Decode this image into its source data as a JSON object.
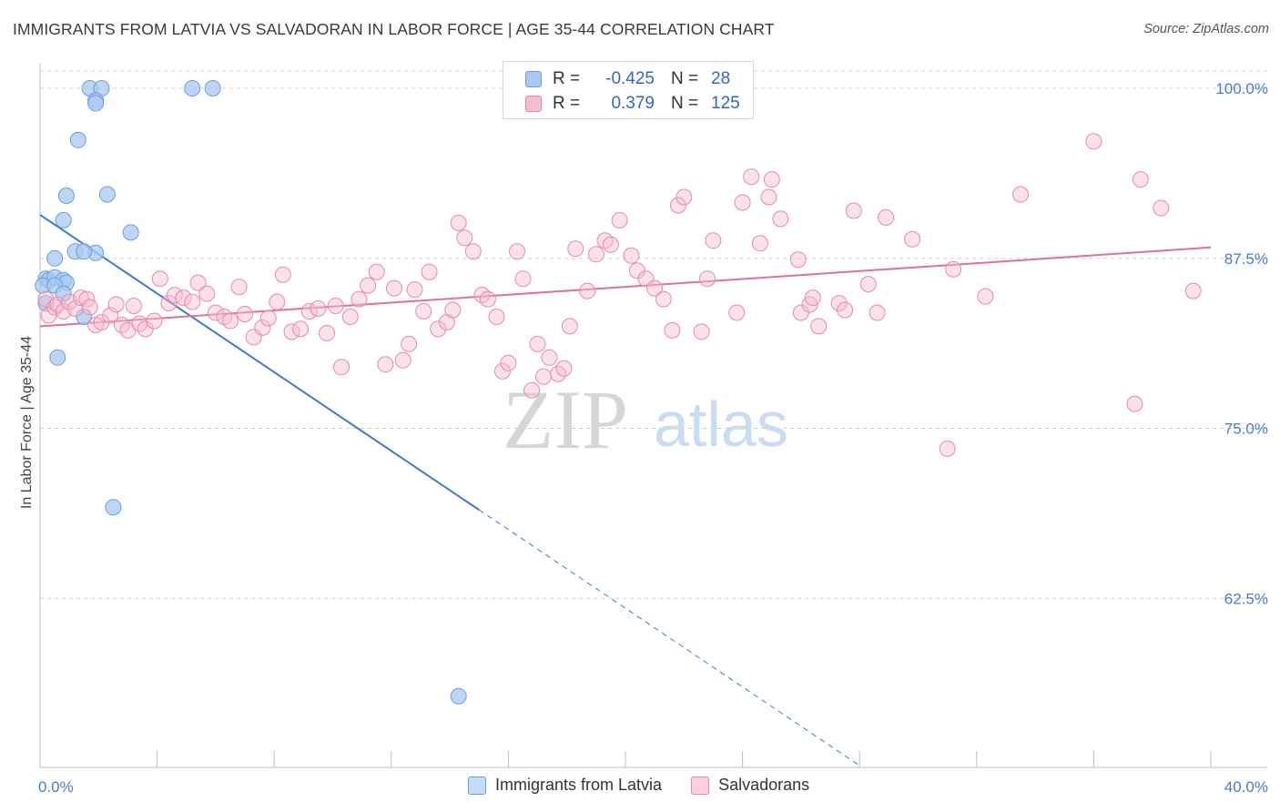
{
  "title": "IMMIGRANTS FROM LATVIA VS SALVADORAN IN LABOR FORCE | AGE 35-44 CORRELATION CHART",
  "source": "Source: ZipAtlas.com",
  "watermark": {
    "zip": "ZIP",
    "atlas": "atlas"
  },
  "legend": {
    "rows": [
      {
        "r_label": "R =",
        "r_value": "-0.425",
        "n_label": "N =",
        "n_value": "28",
        "color": "#a8c8f0",
        "border": "#6a9ee0"
      },
      {
        "r_label": "R =",
        "r_value": "0.379",
        "n_label": "N =",
        "n_value": "125",
        "color": "#f7bccd",
        "border": "#e98aa8"
      }
    ]
  },
  "bottom_legend": {
    "series1": "Immigrants from Latvia",
    "series2": "Salvadorans"
  },
  "chart_data": {
    "type": "scatter",
    "title": "IMMIGRANTS FROM LATVIA VS SALVADORAN IN LABOR FORCE | AGE 35-44 CORRELATION CHART",
    "xlabel": "",
    "ylabel": "In Labor Force | Age 35-44",
    "xlim": [
      0,
      40
    ],
    "ylim": [
      50,
      101
    ],
    "x_tick_labels": [
      "0.0%",
      "40.0%"
    ],
    "y_ticks": [
      62.5,
      75.0,
      87.5,
      100.0
    ],
    "y_tick_labels": [
      "62.5%",
      "75.0%",
      "87.5%",
      "100.0%"
    ],
    "grid": "horizontal dashed",
    "series": [
      {
        "name": "Immigrants from Latvia",
        "color": "#a8c8f0",
        "stroke": "#6a9ee0",
        "trend_color": "#3a7bd5",
        "trend": {
          "x1": 0.0,
          "y1": 90.7,
          "x2": 15.0,
          "y2": 69.0,
          "dashed_to_x": 28.0,
          "dashed_to_y": 50.2
        },
        "points": [
          [
            1.7,
            100.0
          ],
          [
            2.1,
            100.0
          ],
          [
            5.2,
            100.0
          ],
          [
            5.9,
            100.0
          ],
          [
            1.9,
            99.1
          ],
          [
            1.9,
            98.9
          ],
          [
            1.3,
            96.2
          ],
          [
            0.9,
            92.1
          ],
          [
            2.3,
            92.2
          ],
          [
            0.8,
            90.3
          ],
          [
            3.1,
            89.4
          ],
          [
            0.5,
            87.5
          ],
          [
            1.2,
            88.0
          ],
          [
            1.9,
            87.9
          ],
          [
            1.5,
            88.0
          ],
          [
            0.2,
            86.0
          ],
          [
            0.3,
            85.9
          ],
          [
            0.5,
            86.1
          ],
          [
            0.8,
            85.9
          ],
          [
            0.9,
            85.7
          ],
          [
            0.1,
            85.5
          ],
          [
            0.5,
            85.5
          ],
          [
            0.8,
            84.9
          ],
          [
            0.2,
            84.2
          ],
          [
            1.5,
            83.2
          ],
          [
            0.6,
            80.2
          ],
          [
            2.5,
            69.2
          ],
          [
            14.3,
            55.3
          ]
        ]
      },
      {
        "name": "Salvadorans",
        "color": "#f7bccd",
        "stroke": "#e98aa8",
        "trend_color": "#e0729a",
        "trend": {
          "x1": 0.0,
          "y1": 82.5,
          "x2": 40.0,
          "y2": 88.3
        },
        "points": [
          [
            0.2,
            84.5
          ],
          [
            0.3,
            83.3
          ],
          [
            0.5,
            83.9
          ],
          [
            0.6,
            84.1
          ],
          [
            0.8,
            83.6
          ],
          [
            1.0,
            84.3
          ],
          [
            1.2,
            83.8
          ],
          [
            1.4,
            84.6
          ],
          [
            1.6,
            84.5
          ],
          [
            1.7,
            83.9
          ],
          [
            1.9,
            82.6
          ],
          [
            2.1,
            82.8
          ],
          [
            2.4,
            83.3
          ],
          [
            2.6,
            84.1
          ],
          [
            2.8,
            82.6
          ],
          [
            3.0,
            82.2
          ],
          [
            3.2,
            84.0
          ],
          [
            3.4,
            82.7
          ],
          [
            3.6,
            82.3
          ],
          [
            3.9,
            82.9
          ],
          [
            4.1,
            86.0
          ],
          [
            4.4,
            84.2
          ],
          [
            4.6,
            84.8
          ],
          [
            4.9,
            84.6
          ],
          [
            5.2,
            84.3
          ],
          [
            5.4,
            85.7
          ],
          [
            5.7,
            84.9
          ],
          [
            6.0,
            83.5
          ],
          [
            6.3,
            83.2
          ],
          [
            6.5,
            82.9
          ],
          [
            6.8,
            85.4
          ],
          [
            7.0,
            83.4
          ],
          [
            7.3,
            81.7
          ],
          [
            7.6,
            82.4
          ],
          [
            7.8,
            83.1
          ],
          [
            8.1,
            84.3
          ],
          [
            8.3,
            86.3
          ],
          [
            8.6,
            82.1
          ],
          [
            8.9,
            82.3
          ],
          [
            9.2,
            83.6
          ],
          [
            9.5,
            83.8
          ],
          [
            9.8,
            82.0
          ],
          [
            10.1,
            84.0
          ],
          [
            10.3,
            79.5
          ],
          [
            10.6,
            83.2
          ],
          [
            10.9,
            84.5
          ],
          [
            11.2,
            85.5
          ],
          [
            11.5,
            86.5
          ],
          [
            11.8,
            79.7
          ],
          [
            12.1,
            85.3
          ],
          [
            12.4,
            80.0
          ],
          [
            12.6,
            81.2
          ],
          [
            12.8,
            85.2
          ],
          [
            13.1,
            83.6
          ],
          [
            13.3,
            86.5
          ],
          [
            13.6,
            82.3
          ],
          [
            13.9,
            82.8
          ],
          [
            14.1,
            83.7
          ],
          [
            14.3,
            90.1
          ],
          [
            14.5,
            89.0
          ],
          [
            14.8,
            88.0
          ],
          [
            15.1,
            84.8
          ],
          [
            15.3,
            84.5
          ],
          [
            15.6,
            83.2
          ],
          [
            15.8,
            79.2
          ],
          [
            16.0,
            79.8
          ],
          [
            16.3,
            88.0
          ],
          [
            16.5,
            86.0
          ],
          [
            16.8,
            77.8
          ],
          [
            17.0,
            81.2
          ],
          [
            17.2,
            78.8
          ],
          [
            17.4,
            80.2
          ],
          [
            17.7,
            79.0
          ],
          [
            17.9,
            79.4
          ],
          [
            18.1,
            82.5
          ],
          [
            18.3,
            88.2
          ],
          [
            18.7,
            85.1
          ],
          [
            19.0,
            87.8
          ],
          [
            19.3,
            88.8
          ],
          [
            19.5,
            88.5
          ],
          [
            19.8,
            90.3
          ],
          [
            20.2,
            87.7
          ],
          [
            20.4,
            86.6
          ],
          [
            20.7,
            86.0
          ],
          [
            21.0,
            85.3
          ],
          [
            21.3,
            84.5
          ],
          [
            21.6,
            82.2
          ],
          [
            21.8,
            91.4
          ],
          [
            22.0,
            92.0
          ],
          [
            22.6,
            82.1
          ],
          [
            22.8,
            86.0
          ],
          [
            23.0,
            88.8
          ],
          [
            23.8,
            83.5
          ],
          [
            24.0,
            91.6
          ],
          [
            24.3,
            93.5
          ],
          [
            24.6,
            88.6
          ],
          [
            24.9,
            92.0
          ],
          [
            25.0,
            93.3
          ],
          [
            25.3,
            90.4
          ],
          [
            25.9,
            87.4
          ],
          [
            26.0,
            83.5
          ],
          [
            26.3,
            84.1
          ],
          [
            26.4,
            84.6
          ],
          [
            26.6,
            82.5
          ],
          [
            27.3,
            84.2
          ],
          [
            27.5,
            83.7
          ],
          [
            27.8,
            91.0
          ],
          [
            28.3,
            85.6
          ],
          [
            28.6,
            83.5
          ],
          [
            28.9,
            90.5
          ],
          [
            29.8,
            88.9
          ],
          [
            31.0,
            73.5
          ],
          [
            31.2,
            86.7
          ],
          [
            32.3,
            84.7
          ],
          [
            33.5,
            92.2
          ],
          [
            36.0,
            96.1
          ],
          [
            37.4,
            76.8
          ],
          [
            37.6,
            93.3
          ],
          [
            38.3,
            91.2
          ],
          [
            39.4,
            85.1
          ]
        ]
      }
    ]
  }
}
